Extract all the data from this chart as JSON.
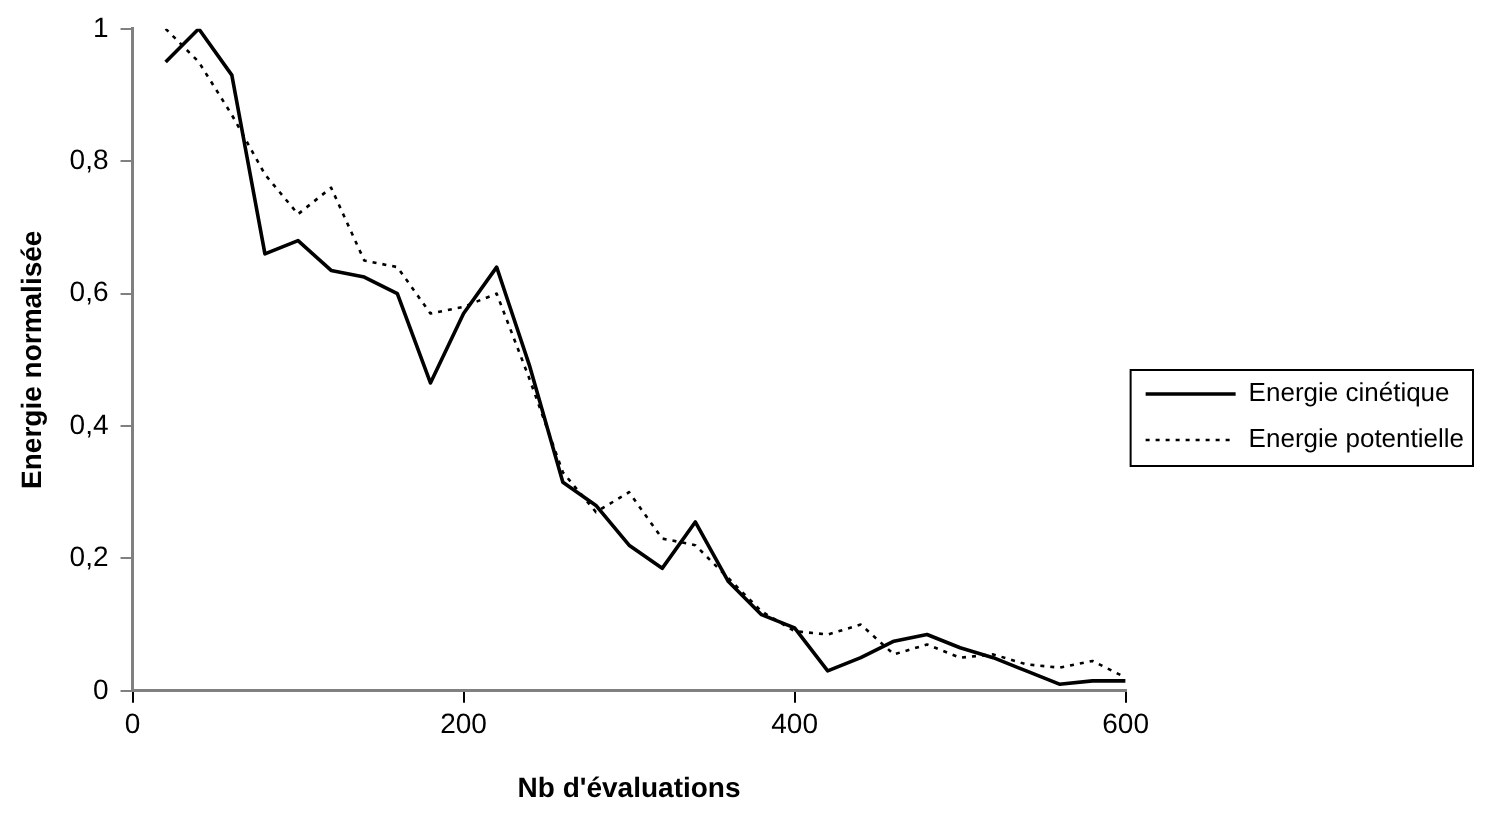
{
  "chart_data": {
    "type": "line",
    "xlabel": "Nb d'évaluations",
    "ylabel": "Energie normalisée",
    "x": [
      20,
      40,
      60,
      80,
      100,
      120,
      140,
      160,
      180,
      200,
      220,
      240,
      260,
      280,
      300,
      320,
      340,
      360,
      380,
      400,
      420,
      440,
      460,
      480,
      500,
      520,
      540,
      560,
      580,
      600
    ],
    "series": [
      {
        "name": "Energie cinétique",
        "color": "#000000",
        "line_style": "solid",
        "values": [
          0.95,
          1.0,
          0.93,
          0.66,
          0.68,
          0.635,
          0.625,
          0.6,
          0.465,
          0.57,
          0.64,
          0.49,
          0.315,
          0.28,
          0.22,
          0.185,
          0.255,
          0.165,
          0.115,
          0.095,
          0.03,
          0.05,
          0.075,
          0.085,
          0.065,
          0.05,
          0.03,
          0.01,
          0.015,
          0.015
        ]
      },
      {
        "name": "Energie potentielle",
        "color": "#000000",
        "line_style": "dotted",
        "values": [
          1.0,
          0.95,
          0.87,
          0.78,
          0.72,
          0.76,
          0.65,
          0.64,
          0.57,
          0.58,
          0.6,
          0.47,
          0.33,
          0.27,
          0.3,
          0.23,
          0.22,
          0.17,
          0.12,
          0.09,
          0.085,
          0.1,
          0.055,
          0.07,
          0.05,
          0.055,
          0.04,
          0.035,
          0.045,
          0.02
        ]
      }
    ],
    "xlim": [
      0,
      600
    ],
    "xticks": [
      0,
      200,
      400,
      600
    ],
    "ylim": [
      0,
      1
    ],
    "yticks": [
      0,
      {
        "value": 0.2,
        "label": "0,2"
      },
      {
        "value": 0.4,
        "label": "0,4"
      },
      {
        "value": 0.6,
        "label": "0,6"
      },
      {
        "value": 0.8,
        "label": "0,8"
      },
      1
    ],
    "grid": false,
    "legend": "right",
    "marker": "none"
  }
}
